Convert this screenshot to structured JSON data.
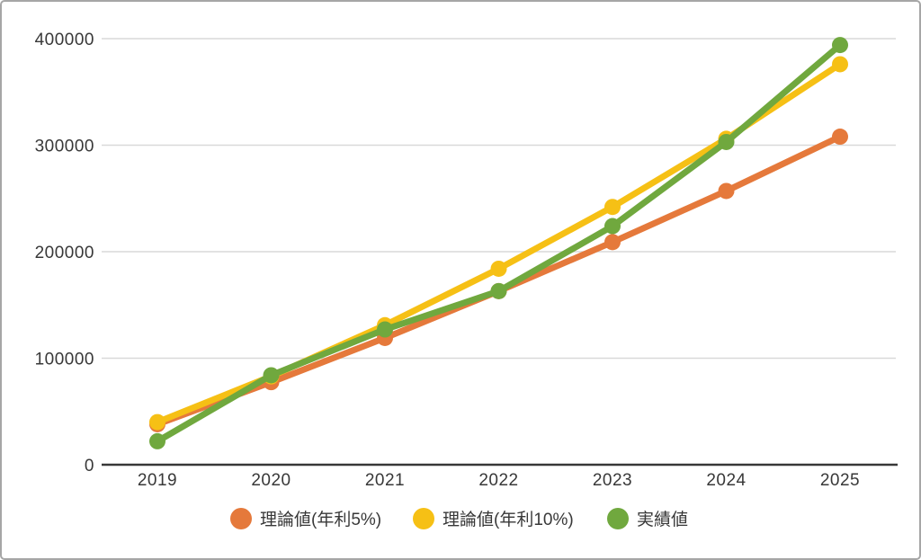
{
  "chart_data": {
    "type": "line",
    "x": [
      2019,
      2020,
      2021,
      2022,
      2023,
      2024,
      2025
    ],
    "xtick_labels": [
      "2019",
      "2020",
      "2021",
      "2022",
      "2023",
      "2024",
      "2025"
    ],
    "yticks": [
      0,
      100000,
      200000,
      300000,
      400000
    ],
    "ytick_labels": [
      "0",
      "100000",
      "200000",
      "300000",
      "400000"
    ],
    "ylim": [
      0,
      400000
    ],
    "series": [
      {
        "name": "理論値(年利5%)",
        "color": "#e5793b",
        "values": [
          38000,
          77500,
          119000,
          163000,
          209000,
          257000,
          308000
        ]
      },
      {
        "name": "理論値(年利10%)",
        "color": "#f6c015",
        "values": [
          40000,
          83000,
          131000,
          184000,
          242000,
          306000,
          376000
        ]
      },
      {
        "name": "実績値",
        "color": "#70a83e",
        "values": [
          22000,
          84000,
          127000,
          163000,
          224000,
          303000,
          394000
        ]
      }
    ],
    "title": "",
    "xlabel": "",
    "ylabel": "",
    "grid": "horizontal",
    "legend_position": "bottom"
  },
  "style": {
    "grid_color": "#d9d9d9",
    "axis_color": "#383838",
    "text_color": "#383838",
    "background": "#ffffff",
    "border_color": "#a6a6a6"
  }
}
